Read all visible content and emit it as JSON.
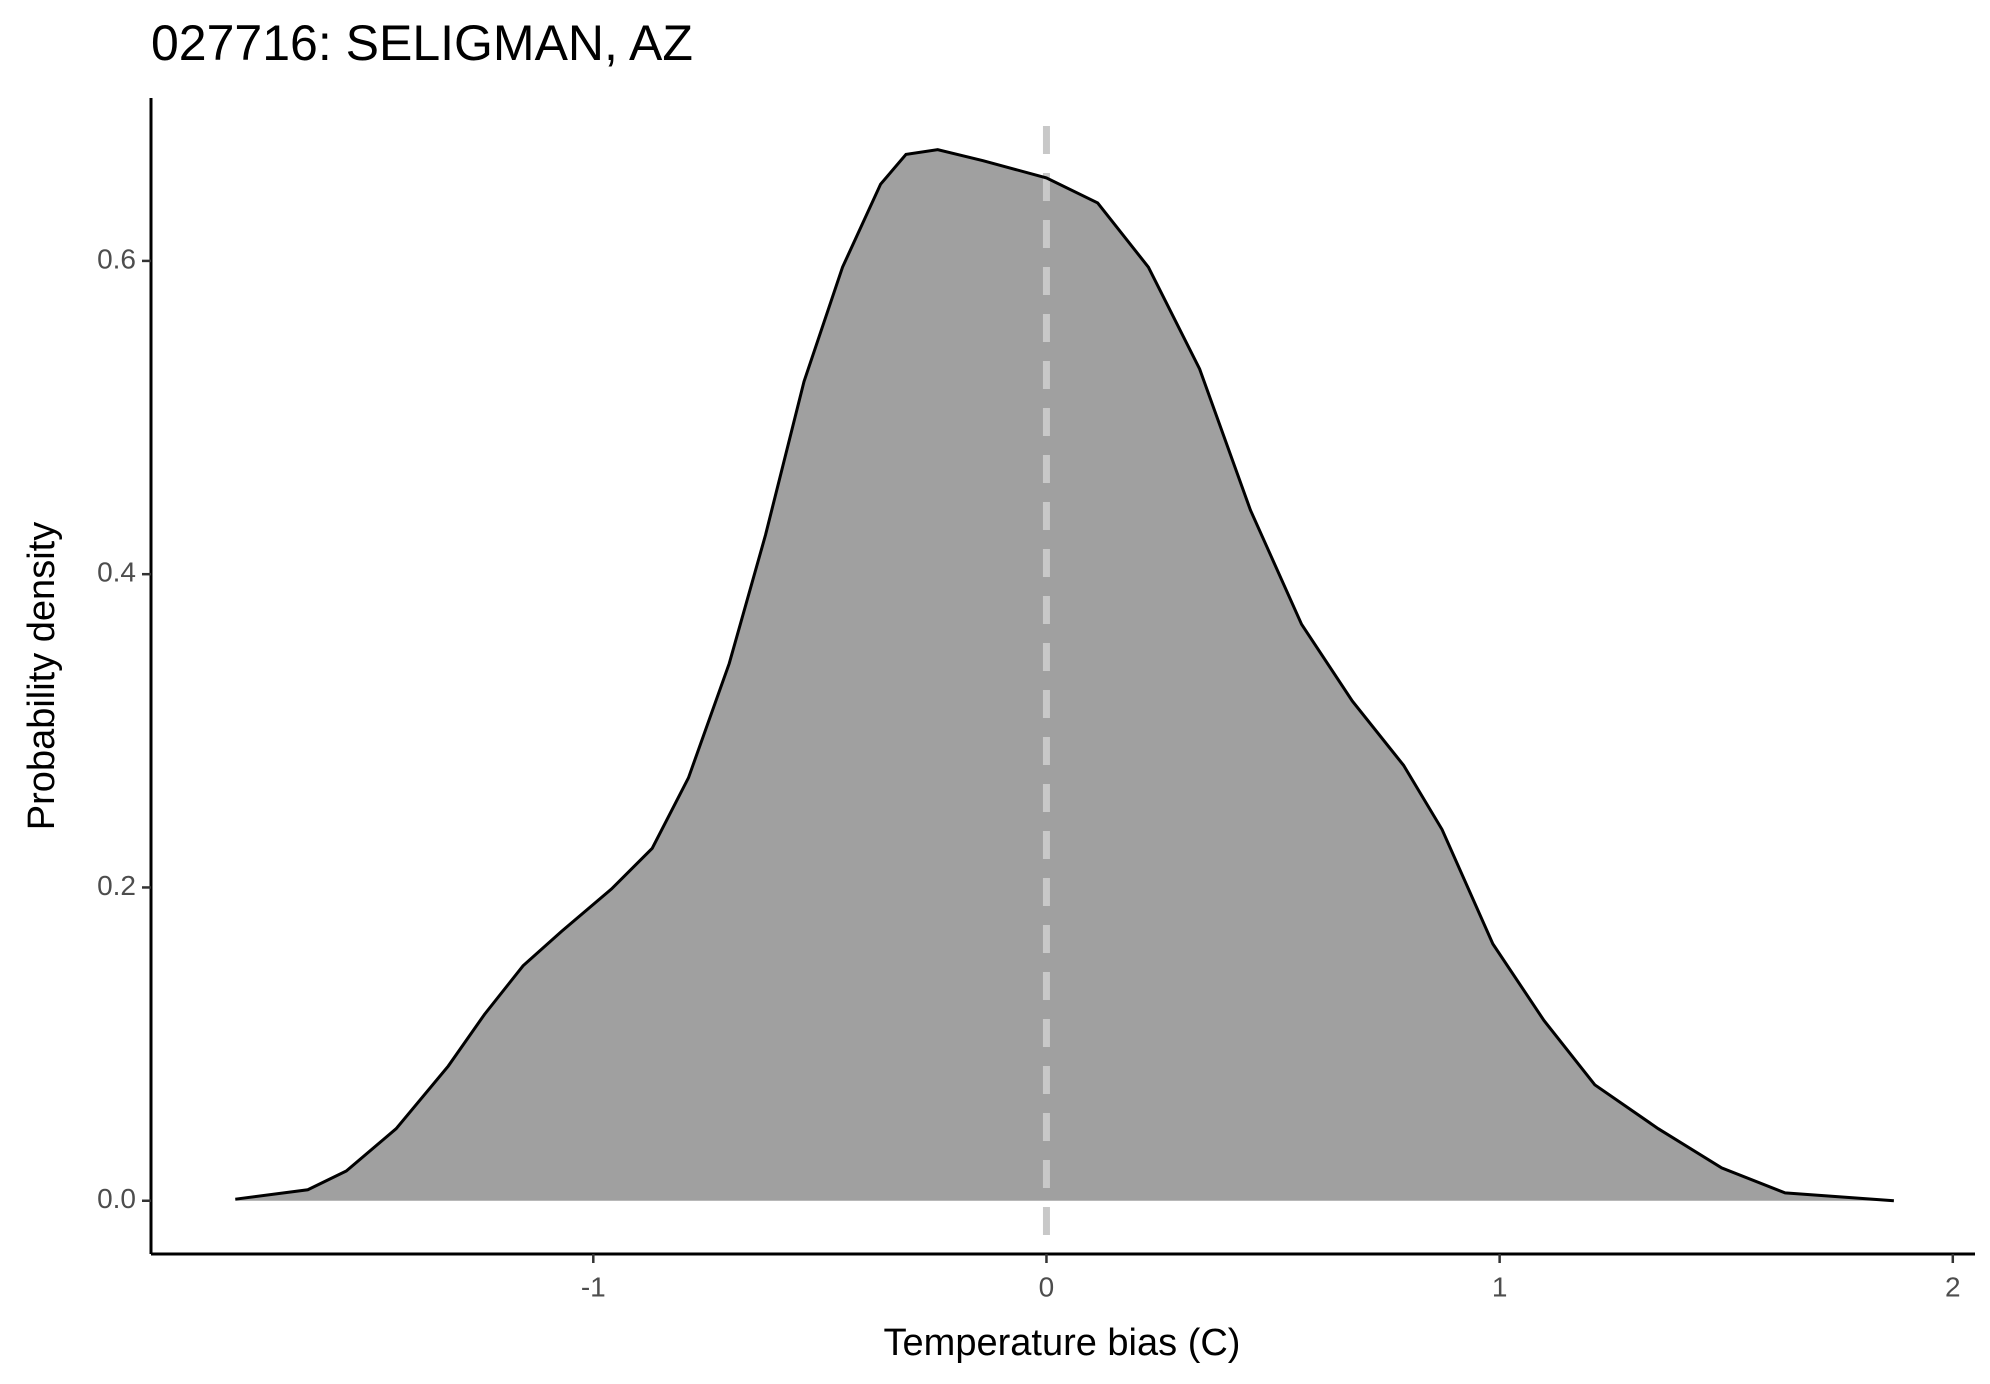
{
  "chart_data": {
    "type": "density",
    "title": "027716: SELIGMAN, AZ",
    "x_label": "Temperature bias (C)",
    "y_label": "Probability density",
    "x": [
      -1.79,
      -1.63,
      -1.545,
      -1.435,
      -1.32,
      -1.24,
      -1.155,
      -1.07,
      -0.96,
      -0.87,
      -0.79,
      -0.7,
      -0.62,
      -0.535,
      -0.45,
      -0.366,
      -0.31,
      -0.24,
      -0.14,
      0,
      0.113,
      0.225,
      0.338,
      0.45,
      0.563,
      0.675,
      0.788,
      0.873,
      0.985,
      1.098,
      1.21,
      1.35,
      1.49,
      1.63,
      1.87
    ],
    "values": [
      0.001,
      0.007,
      0.019,
      0.046,
      0.086,
      0.119,
      0.15,
      0.172,
      0.199,
      0.225,
      0.27,
      0.343,
      0.425,
      0.523,
      0.596,
      0.649,
      0.668,
      0.671,
      0.664,
      0.653,
      0.637,
      0.596,
      0.531,
      0.441,
      0.368,
      0.319,
      0.278,
      0.237,
      0.164,
      0.115,
      0.074,
      0.046,
      0.021,
      0.005,
      0.0
    ],
    "color": "#a0a0a0",
    "line_color": "#000000",
    "vline": 0,
    "vline_color": "#c8c8c8",
    "xlim": [
      -1.976,
      2.049
    ],
    "ylim": [
      -0.034,
      0.704
    ],
    "xticks": [
      -1,
      0,
      1,
      2
    ],
    "yticks": [
      {
        "value": 0,
        "label": "0.0"
      },
      0.2,
      0.4,
      0.6
    ],
    "grid": false
  }
}
